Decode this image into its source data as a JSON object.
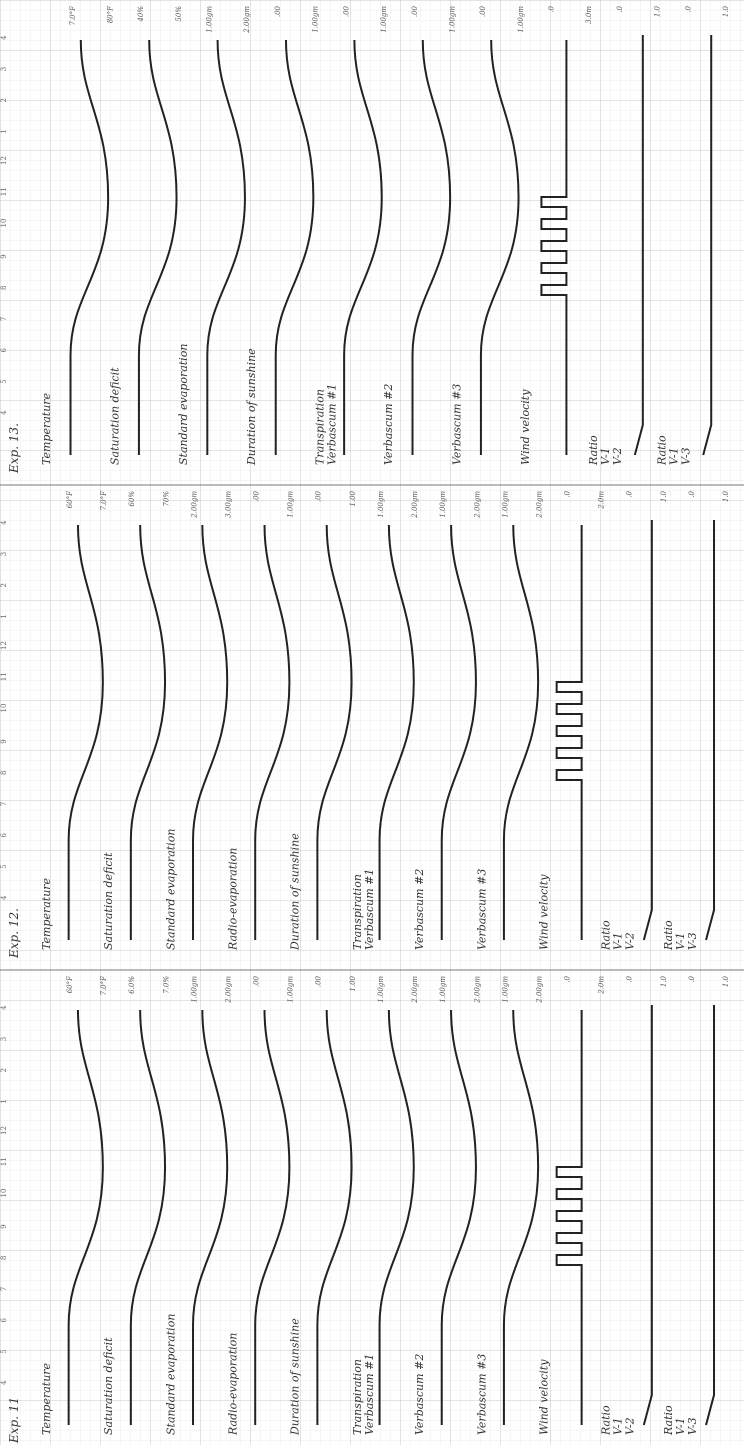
{
  "panels": [
    {
      "title": "Exp. 11",
      "hours": [
        4,
        5,
        6,
        7,
        8,
        9,
        10,
        11,
        12,
        1,
        2,
        3,
        4
      ],
      "rows": [
        {
          "label": [
            "Temperature"
          ],
          "scale": [
            "7.0°F",
            "60°F"
          ]
        },
        {
          "label": [
            "Saturation deficit"
          ],
          "scale": [
            "7.0%",
            "6.0%"
          ]
        },
        {
          "label": [
            "Standard evaporation"
          ],
          "scale": [
            "2.00gm",
            "1.00gm"
          ]
        },
        {
          "label": [
            "Radio-evaporation"
          ],
          "scale": [
            "1.00gm",
            ".00"
          ]
        },
        {
          "label": [
            "Duration of sunshine"
          ],
          "scale": [
            "1.00",
            ".00"
          ]
        },
        {
          "label": [
            "Transpiration",
            "Verbascum #1"
          ],
          "scale": [
            "2.00gm",
            "1.00gm"
          ]
        },
        {
          "label": [
            "Verbascum #2"
          ],
          "scale": [
            "2.00gm",
            "1.00gm"
          ]
        },
        {
          "label": [
            "Verbascum #3"
          ],
          "scale": [
            "2.00gm",
            "1.00gm"
          ]
        },
        {
          "label": [
            "Wind velocity"
          ],
          "scale": [
            "2.0m",
            ".0"
          ]
        },
        {
          "label": [
            "Ratio",
            "V-1",
            "V-2"
          ],
          "scale": [
            "1.0",
            ".0"
          ]
        },
        {
          "label": [
            "Ratio",
            "V-1",
            "V-3"
          ],
          "scale": [
            "1.0",
            ".0"
          ]
        }
      ]
    },
    {
      "title": "Exp. 12.",
      "hours": [
        4,
        5,
        6,
        7,
        8,
        9,
        10,
        11,
        12,
        1,
        2,
        3,
        4
      ],
      "rows": [
        {
          "label": [
            "Temperature"
          ],
          "scale": [
            "7.0°F",
            "60°F"
          ]
        },
        {
          "label": [
            "Saturation deficit"
          ],
          "scale": [
            "70%",
            "60%"
          ]
        },
        {
          "label": [
            "Standard evaporation"
          ],
          "scale": [
            "3.00gm",
            "2.00gm"
          ]
        },
        {
          "label": [
            "Radio-evaporation"
          ],
          "scale": [
            "1.00gm",
            ".00"
          ]
        },
        {
          "label": [
            "Duration of sunshine"
          ],
          "scale": [
            "1.00",
            ".00"
          ]
        },
        {
          "label": [
            "Transpiration",
            "Verbascum #1"
          ],
          "scale": [
            "2.00gm",
            "1.00gm"
          ]
        },
        {
          "label": [
            "Verbascum #2"
          ],
          "scale": [
            "2.00gm",
            "1.00gm"
          ]
        },
        {
          "label": [
            "Verbascum #3"
          ],
          "scale": [
            "2.00gm",
            "1.00gm"
          ]
        },
        {
          "label": [
            "Wind velocity"
          ],
          "scale": [
            "2.0m",
            ".0"
          ]
        },
        {
          "label": [
            "Ratio",
            "V-1",
            "V-2"
          ],
          "scale": [
            "1.0",
            ".0"
          ]
        },
        {
          "label": [
            "Ratio",
            "V-1",
            "V-3"
          ],
          "scale": [
            "1.0",
            ".0"
          ]
        }
      ]
    },
    {
      "title": "Exp. 13.",
      "hours": [
        4,
        5,
        6,
        7,
        8,
        9,
        10,
        11,
        12,
        1,
        2,
        3,
        4
      ],
      "rows": [
        {
          "label": [
            "Temperature"
          ],
          "scale": [
            "80°F",
            "7.0°F"
          ]
        },
        {
          "label": [
            "Saturation deficit"
          ],
          "scale": [
            "50%",
            "40%"
          ]
        },
        {
          "label": [
            "Standard evaporation"
          ],
          "scale": [
            "2.00gm",
            "1.00gm"
          ]
        },
        {
          "label": [
            "Duration of sunshine"
          ],
          "scale": [
            "1.00gm",
            ".00"
          ]
        },
        {
          "label": [
            "Transpiration",
            "Verbascum #1"
          ],
          "scale": [
            "1.00gm",
            ".00"
          ]
        },
        {
          "label": [
            "Verbascum #2"
          ],
          "scale": [
            "1.00gm",
            ".00"
          ]
        },
        {
          "label": [
            "Verbascum #3"
          ],
          "scale": [
            "1.00gm",
            ".00"
          ]
        },
        {
          "label": [
            "Wind velocity"
          ],
          "scale": [
            "3.0m",
            ".0"
          ]
        },
        {
          "label": [
            "Ratio",
            "V-1",
            "V-2"
          ],
          "scale": [
            "1.0",
            ".0"
          ]
        },
        {
          "label": [
            "Ratio",
            "V-1",
            "V-3"
          ],
          "scale": [
            "1.0",
            ".0"
          ]
        }
      ]
    }
  ]
}
